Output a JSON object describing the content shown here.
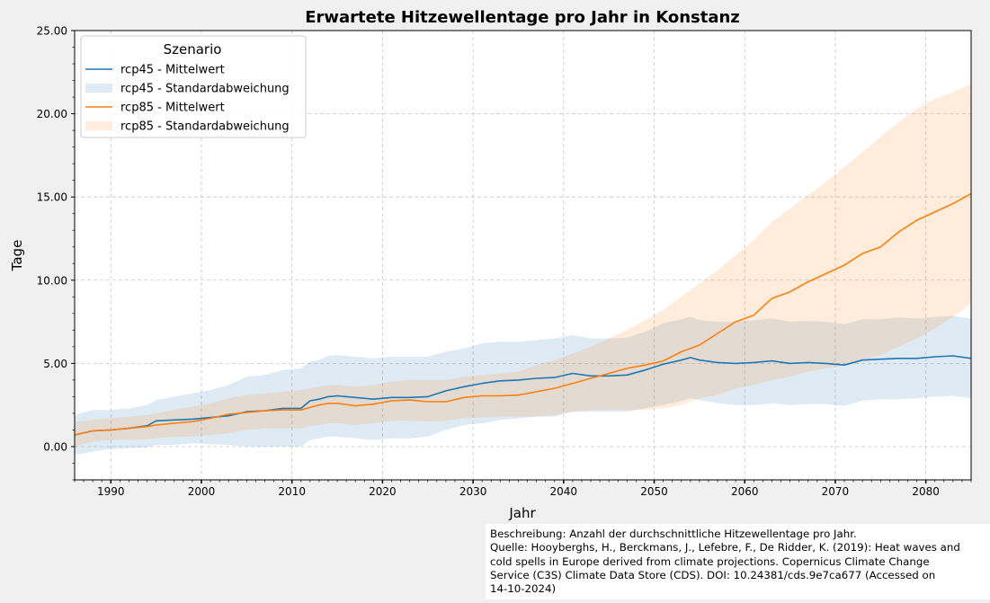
{
  "chart_data": {
    "type": "line",
    "title": "Erwartete Hitzewellentage pro Jahr in Konstanz",
    "xlabel": "Jahr",
    "ylabel": "Tage",
    "xlim": [
      1986,
      2085
    ],
    "ylim": [
      -2,
      25
    ],
    "x_ticks": [
      1990,
      2000,
      2010,
      2020,
      2030,
      2040,
      2050,
      2060,
      2070,
      2080
    ],
    "x_tick_labels": [
      "1990",
      "2000",
      "2010",
      "2020",
      "2030",
      "2040",
      "2050",
      "2060",
      "2070",
      "2080"
    ],
    "y_ticks": [
      0,
      5,
      10,
      15,
      20,
      25
    ],
    "y_tick_labels": [
      "0.00",
      "5.00",
      "10.00",
      "15.00",
      "20.00",
      "25.00"
    ],
    "grid": true,
    "legend": {
      "title": "Szenario",
      "placement": "top-left",
      "entries": [
        {
          "label": "rcp45 - Mittelwert",
          "kind": "line",
          "color": "#1f77b4"
        },
        {
          "label": "rcp45 - Standardabweichung",
          "kind": "band",
          "color": "#1f77b4"
        },
        {
          "label": "rcp85 - Mittelwert",
          "kind": "line",
          "color": "#ff7f0e"
        },
        {
          "label": "rcp85 - Standardabweichung",
          "kind": "band",
          "color": "#ff7f0e"
        }
      ]
    },
    "x": [
      1986,
      1988,
      1990,
      1992,
      1994,
      1995,
      1997,
      1999,
      2001,
      2003,
      2005,
      2007,
      2009,
      2011,
      2012,
      2013,
      2014,
      2015,
      2017,
      2019,
      2021,
      2023,
      2025,
      2027,
      2029,
      2031,
      2033,
      2035,
      2037,
      2039,
      2041,
      2043,
      2045,
      2047,
      2049,
      2051,
      2053,
      2054,
      2055,
      2057,
      2059,
      2061,
      2063,
      2065,
      2067,
      2069,
      2071,
      2073,
      2075,
      2077,
      2079,
      2081,
      2083,
      2085
    ],
    "series": [
      {
        "name": "rcp45 - Mittelwert",
        "color": "#1f77b4",
        "values": [
          0.7,
          0.95,
          1.0,
          1.1,
          1.25,
          1.55,
          1.6,
          1.65,
          1.75,
          1.85,
          2.1,
          2.15,
          2.3,
          2.3,
          2.75,
          2.85,
          3.0,
          3.05,
          2.95,
          2.85,
          2.95,
          2.95,
          3.0,
          3.35,
          3.6,
          3.8,
          3.95,
          4.0,
          4.1,
          4.15,
          4.4,
          4.25,
          4.25,
          4.3,
          4.6,
          4.95,
          5.2,
          5.35,
          5.2,
          5.05,
          5.0,
          5.05,
          5.15,
          5.0,
          5.05,
          5.0,
          4.9,
          5.2,
          5.25,
          5.3,
          5.3,
          5.4,
          5.45,
          5.3
        ],
        "std_lower": [
          -0.5,
          -0.3,
          -0.15,
          -0.1,
          -0.05,
          0.1,
          0.1,
          0.2,
          0.15,
          0.1,
          0.0,
          0.0,
          0.0,
          0.0,
          0.4,
          0.5,
          0.6,
          0.6,
          0.5,
          0.4,
          0.5,
          0.5,
          0.6,
          1.0,
          1.3,
          1.4,
          1.6,
          1.7,
          1.8,
          1.8,
          2.1,
          2.1,
          2.1,
          2.1,
          2.3,
          2.5,
          2.75,
          2.9,
          2.8,
          2.6,
          2.5,
          2.5,
          2.6,
          2.5,
          2.55,
          2.55,
          2.45,
          2.75,
          2.85,
          2.85,
          2.9,
          3.0,
          3.05,
          2.9
        ],
        "std_upper": [
          1.9,
          2.2,
          2.2,
          2.3,
          2.5,
          2.8,
          3.0,
          3.2,
          3.4,
          3.7,
          4.2,
          4.3,
          4.6,
          4.7,
          5.1,
          5.2,
          5.45,
          5.5,
          5.4,
          5.3,
          5.4,
          5.4,
          5.4,
          5.7,
          5.9,
          6.2,
          6.3,
          6.3,
          6.4,
          6.5,
          6.7,
          6.5,
          6.5,
          6.55,
          6.9,
          7.4,
          7.65,
          7.8,
          7.6,
          7.5,
          7.5,
          7.6,
          7.7,
          7.5,
          7.55,
          7.5,
          7.35,
          7.65,
          7.65,
          7.75,
          7.7,
          7.8,
          7.85,
          7.7
        ]
      },
      {
        "name": "rcp85 - Mittelwert",
        "color": "#ff7f0e",
        "values": [
          0.7,
          0.95,
          1.0,
          1.1,
          1.2,
          1.3,
          1.4,
          1.5,
          1.7,
          1.95,
          2.05,
          2.15,
          2.2,
          2.2,
          2.35,
          2.5,
          2.6,
          2.6,
          2.45,
          2.55,
          2.75,
          2.8,
          2.7,
          2.7,
          2.95,
          3.05,
          3.05,
          3.1,
          3.3,
          3.5,
          3.8,
          4.1,
          4.4,
          4.7,
          4.9,
          5.15,
          5.7,
          5.9,
          6.1,
          6.8,
          7.5,
          7.9,
          8.9,
          9.3,
          9.9,
          10.4,
          10.9,
          11.6,
          12.0,
          12.9,
          13.6,
          14.1,
          14.6,
          15.2
        ],
        "std_lower": [
          0.0,
          0.3,
          0.4,
          0.4,
          0.45,
          0.5,
          0.6,
          0.6,
          0.7,
          0.8,
          1.0,
          1.1,
          1.1,
          1.1,
          1.25,
          1.3,
          1.4,
          1.4,
          1.3,
          1.4,
          1.55,
          1.55,
          1.5,
          1.55,
          1.7,
          1.75,
          1.8,
          1.8,
          1.8,
          1.9,
          2.1,
          2.2,
          2.2,
          2.2,
          2.2,
          2.3,
          2.5,
          2.7,
          2.9,
          3.1,
          3.5,
          3.7,
          4.0,
          4.2,
          4.5,
          4.7,
          4.9,
          5.2,
          5.5,
          6.0,
          6.5,
          7.1,
          7.8,
          8.6
        ],
        "std_upper": [
          1.5,
          1.6,
          1.7,
          1.8,
          1.9,
          2.0,
          2.2,
          2.4,
          2.6,
          2.9,
          3.1,
          3.2,
          3.3,
          3.4,
          3.5,
          3.6,
          3.7,
          3.7,
          3.6,
          3.7,
          3.9,
          4.0,
          4.0,
          4.0,
          4.2,
          4.3,
          4.4,
          4.5,
          4.9,
          5.2,
          5.6,
          6.0,
          6.5,
          7.0,
          7.6,
          8.2,
          9.0,
          9.4,
          9.8,
          10.6,
          11.5,
          12.4,
          13.5,
          14.3,
          15.1,
          15.9,
          16.8,
          17.7,
          18.6,
          19.5,
          20.3,
          20.9,
          21.3,
          21.8
        ]
      }
    ]
  },
  "caption": {
    "lines": [
      "Beschreibung: Anzahl der durchschnittliche Hitzewellentage pro Jahr.",
      "Quelle: Hooyberghs, H., Berckmans, J., Lefebre, F., De Ridder, K. (2019): Heat waves and",
      "cold spells in Europe derived from climate projections. Copernicus Climate Change",
      "Service (C3S) Climate Data Store (CDS). DOI: 10.24381/cds.9e7ca677 (Accessed on",
      "14-10-2024)"
    ]
  }
}
